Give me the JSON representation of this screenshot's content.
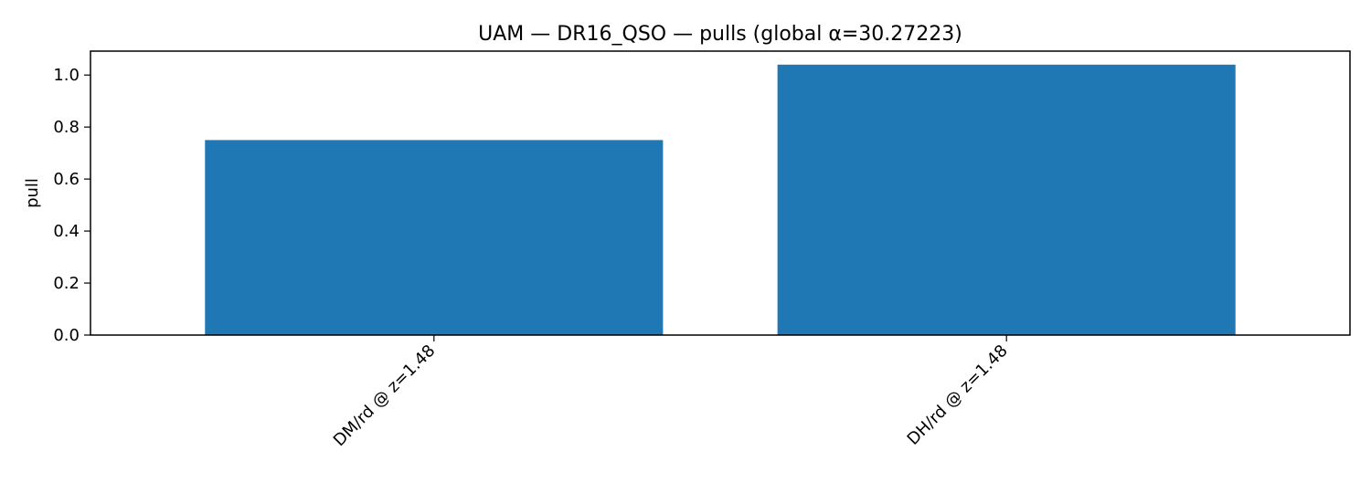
{
  "chart_data": {
    "type": "bar",
    "title": "UAM — DR16_QSO — pulls (global α=30.27223)",
    "xlabel": "",
    "ylabel": "pull",
    "categories": [
      "DM/rd @ z=1.48",
      "DH/rd @ z=1.48"
    ],
    "values": [
      0.75,
      1.04
    ],
    "ylim": [
      0,
      1.092
    ],
    "yticks": [
      0.0,
      0.2,
      0.4,
      0.6,
      0.8,
      1.0
    ],
    "ytick_labels": [
      "0.0",
      "0.2",
      "0.4",
      "0.6",
      "0.8",
      "1.0"
    ],
    "bar_color": "#1f77b4",
    "grid": false,
    "legend": "none"
  }
}
